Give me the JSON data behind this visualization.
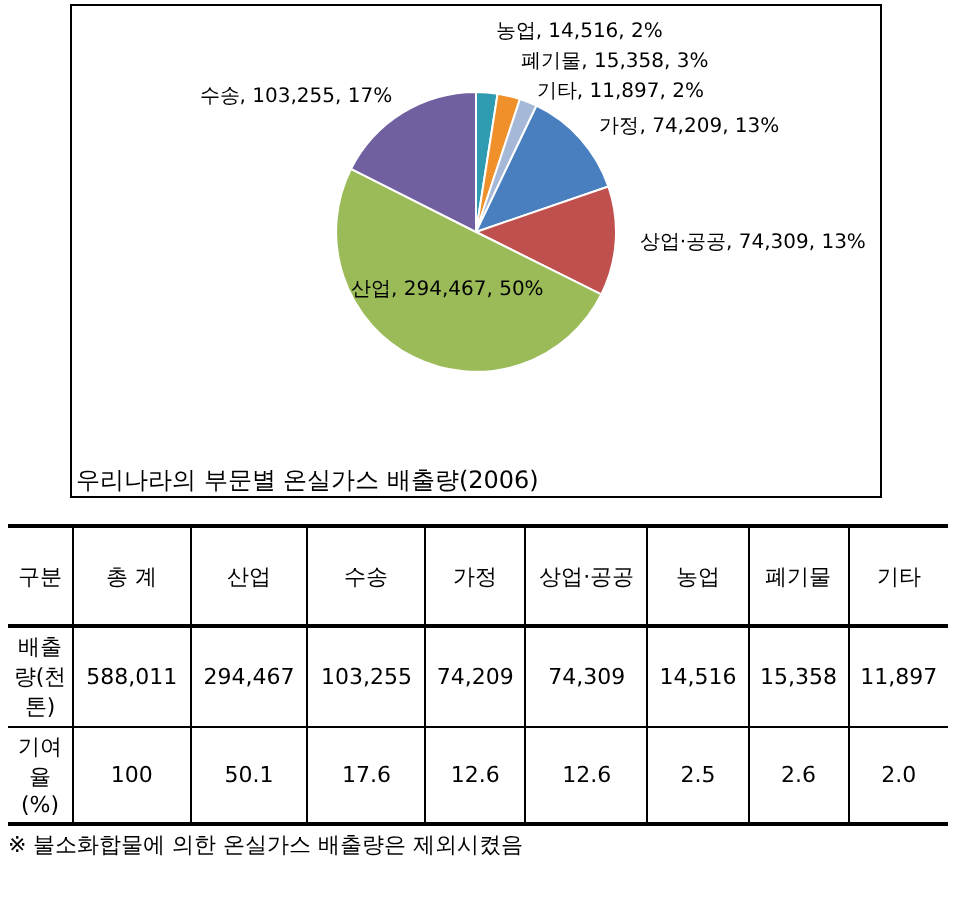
{
  "chart_data": [
    {
      "type": "pie",
      "title": "우리나라의 부문별 온실가스 배출량(2006)",
      "categories": [
        "농업",
        "폐기물",
        "기타",
        "가정",
        "상업·공공",
        "산업",
        "수송"
      ],
      "values": [
        14516,
        15358,
        11897,
        74209,
        74309,
        294467,
        103255
      ],
      "colors": [
        "#2e9bb0",
        "#f0902a",
        "#a6b8d8",
        "#4a7fbf",
        "#c0504d",
        "#9bbb59",
        "#7060a0"
      ],
      "value_labels": [
        "14,516, 2%",
        "15,358, 3%",
        "11,897, 2%",
        "74,209, 13%",
        "74,309, 13%",
        "294,467, 50%",
        "103,255, 17%"
      ]
    },
    {
      "type": "other",
      "xlabel": "구분",
      "categories": [
        "총 계",
        "산업",
        "수송",
        "가정",
        "상업·공공",
        "농업",
        "폐기물",
        "기타"
      ],
      "y_categories": [
        "배출량(천톤)",
        "기여율(%)"
      ],
      "cell_labels": [
        [
          "588,011",
          "294,467",
          "103,255",
          "74,209",
          "74,309",
          "14,516",
          "15,358",
          "11,897"
        ],
        [
          "100",
          "50.1",
          "17.6",
          "12.6",
          "12.6",
          "2.5",
          "2.6",
          "2.0"
        ]
      ],
      "annotations": [
        "※ 불소화합물에 의한 온실가스 배출량은 제외시켰음"
      ]
    }
  ]
}
